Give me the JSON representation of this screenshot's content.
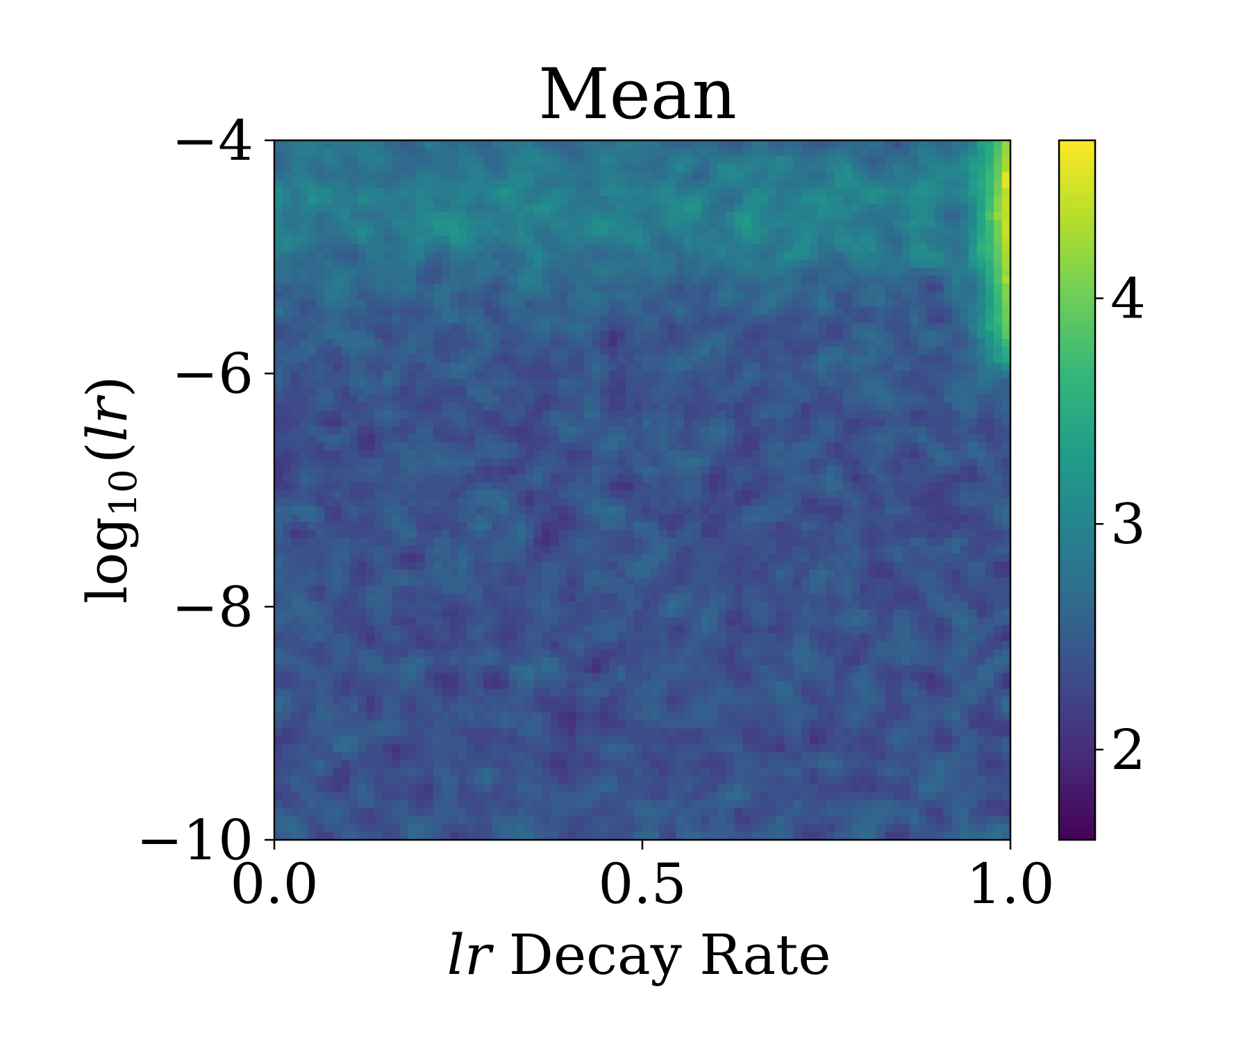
{
  "chart_data": {
    "type": "heatmap",
    "title": "Mean",
    "xlabel": {
      "italic": "lr",
      "text": " Decay Rate"
    },
    "ylabel": {
      "prefix": "log",
      "subscript": "10",
      "open": "(",
      "italic": "lr",
      "close": ")"
    },
    "xlim": [
      0.0,
      1.0
    ],
    "ylim": [
      -10,
      -4
    ],
    "x_ticks": [
      0.0,
      0.5,
      1.0
    ],
    "x_tick_labels": [
      "0.0",
      "0.5",
      "1.0"
    ],
    "y_ticks": [
      -4,
      -6,
      -8,
      -10
    ],
    "y_tick_labels": [
      "−4",
      "−6",
      "−8",
      "−10"
    ],
    "colorbar": {
      "range": [
        1.6,
        4.7
      ],
      "ticks": [
        2,
        3,
        4
      ],
      "tick_labels": [
        "2",
        "3",
        "4"
      ],
      "colormap": "viridis"
    },
    "grid": false,
    "description_of_values": {
      "background_mean": 2.4,
      "noise_amplitude": 0.35,
      "high_region": "values rise to about 4.5 near x = 0.95 to 1.0 for log10(lr) between -4 and -6",
      "upper_band": "values about 3.0 near log10(lr) = -4.5 across x"
    }
  },
  "colors": {
    "viridis": [
      "#440154",
      "#482878",
      "#3e4989",
      "#31688e",
      "#26828e",
      "#1f9e89",
      "#35b779",
      "#6ece58",
      "#b5de2b",
      "#fde725"
    ],
    "axis": "#000000",
    "background": "#ffffff"
  }
}
